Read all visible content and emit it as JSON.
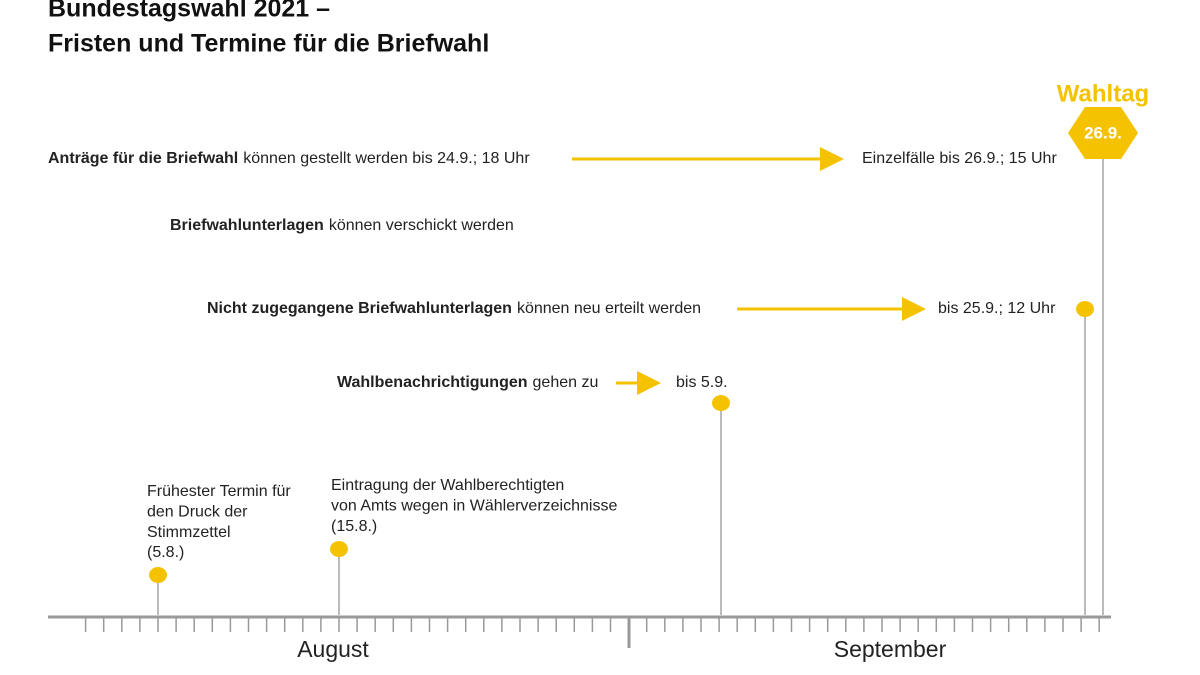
{
  "header": {
    "title": [
      "Bundestagswahl 2021 –",
      "Fristen und Termine für die Briefwahl"
    ]
  },
  "wahltag": {
    "label": "Wahltag",
    "date": "26.9."
  },
  "rows": [
    {
      "bold": "Anträge für die Briefwahl",
      "text": "können gestellt werden bis 24.9.; 18 Uhr",
      "end": "Einzelfälle bis 26.9.; 15 Uhr"
    },
    {
      "bold": "Briefwahlunterlagen",
      "text": "können verschickt werden"
    },
    {
      "bold": "Nicht zugegangene Briefwahlunterlagen",
      "text": "können neu erteilt werden",
      "end": "bis 25.9.; 12 Uhr"
    },
    {
      "bold": "Wahlbenachrichtigungen",
      "text": "gehen zu",
      "end": "bis 5.9."
    }
  ],
  "milestones": [
    {
      "lines": [
        "Frühester Termin für",
        "den Druck der",
        "Stimmzettel",
        "(5.8.)"
      ]
    },
    {
      "lines": [
        "Eintragung der Wahlberechtigten",
        "von Amts wegen in Wählerverzeichnisse",
        "(15.8.)"
      ]
    }
  ],
  "months": [
    "August",
    "September"
  ]
}
